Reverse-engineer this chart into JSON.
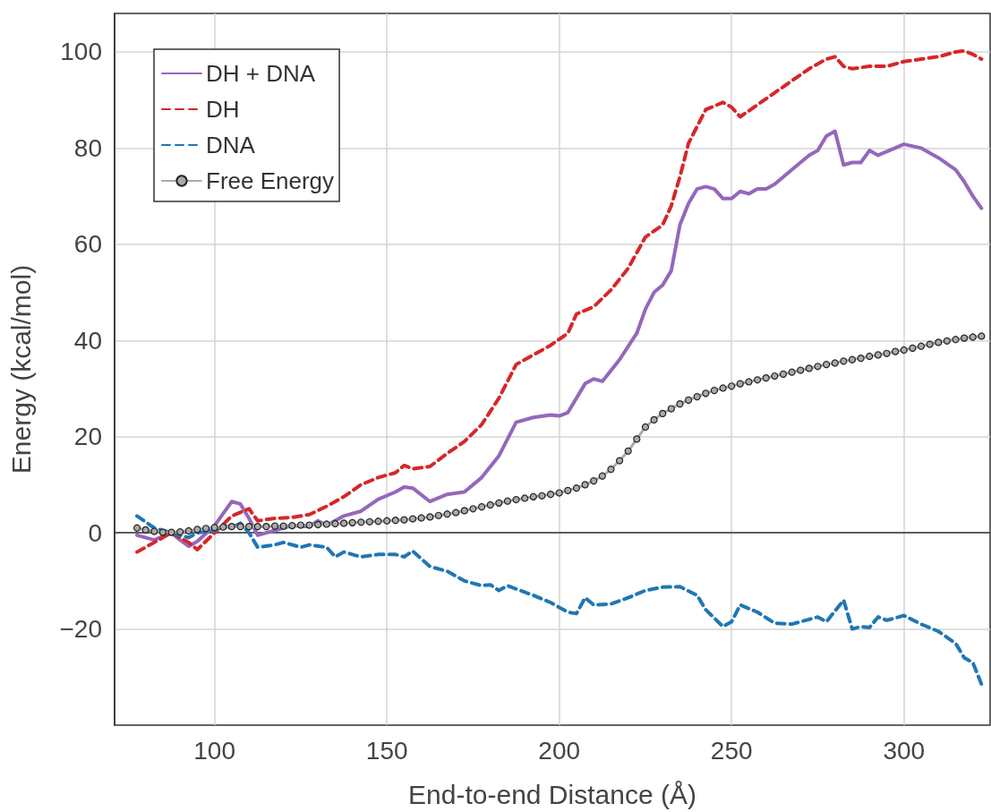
{
  "chart_data": {
    "type": "line",
    "xlabel": "End-to-end Distance (Å)",
    "ylabel": "Energy (kcal/mol)",
    "xlim": [
      71,
      325
    ],
    "xticks": [
      100,
      150,
      200,
      250,
      300
    ],
    "ylim": [
      -40,
      108
    ],
    "yticks": [
      -20,
      0,
      20,
      40,
      60,
      80,
      100
    ],
    "grid": true,
    "legend": "top left",
    "series": [
      {
        "name": "DH + DNA",
        "color": "#9467bd",
        "line_style": "solid",
        "marker": "none",
        "x": [
          77.5,
          82.5,
          87.5,
          90,
          92.5,
          95,
          100,
          102.5,
          105,
          107.5,
          110,
          112.5,
          117.5,
          122.5,
          127.5,
          130,
          132.5,
          137.5,
          142.5,
          147.5,
          152.5,
          155,
          157.5,
          162.5,
          167.5,
          172.5,
          177.5,
          182.5,
          187.5,
          192.5,
          197.5,
          200,
          202.5,
          207.5,
          210,
          212.5,
          217.5,
          222.5,
          225,
          227.5,
          230,
          232.5,
          235,
          237.5,
          240,
          242.5,
          245,
          247.5,
          250,
          252.5,
          255,
          257.5,
          260,
          262.5,
          267.5,
          272.5,
          275,
          277.5,
          280,
          282.5,
          285,
          287.5,
          290,
          292.5,
          300,
          305,
          310,
          315,
          317.5,
          320,
          322.5
        ],
        "values": [
          -0.5,
          -1.5,
          0,
          -1.5,
          -2.8,
          -1.8,
          1.5,
          4,
          6.5,
          6,
          3,
          -0.5,
          0.5,
          1.5,
          1.3,
          2.5,
          1.5,
          3.5,
          4.5,
          7,
          8.5,
          9.5,
          9.3,
          6.5,
          8,
          8.5,
          11.5,
          16,
          23,
          24,
          24.5,
          24.3,
          25,
          31,
          32,
          31.5,
          36,
          41.5,
          46.5,
          50,
          51.5,
          54.5,
          64,
          68.5,
          71.5,
          72,
          71.5,
          69.5,
          69.5,
          71,
          70.5,
          71.5,
          71.5,
          72.5,
          75.5,
          78.5,
          79.5,
          82.5,
          83.5,
          76.5,
          77,
          77,
          79.5,
          78.5,
          80.8,
          80,
          78,
          75.5,
          73,
          70,
          67.5
        ]
      },
      {
        "name": "DH",
        "color": "#d62728",
        "line_style": "dashed",
        "marker": "none",
        "x": [
          77.5,
          82.5,
          87.5,
          92.5,
          95,
          100,
          105,
          110,
          112.5,
          117.5,
          122.5,
          127.5,
          132.5,
          137.5,
          142.5,
          147.5,
          152.5,
          155,
          157.5,
          162.5,
          167.5,
          172.5,
          177.5,
          182.5,
          187.5,
          192.5,
          197.5,
          202.5,
          205,
          210,
          215,
          220,
          225,
          230,
          232.5,
          235,
          237.5,
          242.5,
          247.5,
          250,
          252.5,
          257.5,
          262.5,
          267.5,
          272.5,
          277.5,
          280,
          282.5,
          285,
          290,
          295,
          300,
          305,
          310,
          315,
          317.5,
          320,
          322.5
        ],
        "values": [
          -4,
          -2,
          0,
          -2,
          -3.5,
          0,
          3.5,
          5,
          2.5,
          3,
          3.2,
          3.8,
          5.5,
          7.5,
          10,
          11.5,
          12.5,
          14,
          13.3,
          13.8,
          16.5,
          19,
          22.5,
          28,
          35,
          37,
          39,
          41.5,
          45.5,
          47,
          50.5,
          55,
          61.5,
          64,
          68,
          74,
          81,
          88,
          89.5,
          88.5,
          86.5,
          89,
          91.5,
          94,
          96.5,
          98.5,
          99,
          97,
          96.5,
          97,
          97,
          98,
          98.5,
          99,
          100,
          100.2,
          99.5,
          98.5
        ]
      },
      {
        "name": "DNA",
        "color": "#1f77b4",
        "line_style": "dashed",
        "marker": "none",
        "x": [
          77.5,
          82.5,
          87.5,
          92.5,
          95,
          100,
          102.5,
          105,
          107.5,
          110,
          112.5,
          117.5,
          120,
          125,
          127.5,
          132.5,
          135,
          137.5,
          142.5,
          147.5,
          152.5,
          155,
          157.5,
          162.5,
          167.5,
          172.5,
          177.5,
          180,
          182.5,
          185,
          192.5,
          197.5,
          202.5,
          205,
          207.5,
          210,
          215,
          220,
          225,
          230,
          235,
          240,
          242.5,
          247.5,
          250,
          252.5,
          257.5,
          262.5,
          267.5,
          272.5,
          275,
          277.5,
          282.5,
          285,
          287.5,
          290,
          292.5,
          295,
          300,
          305,
          310,
          315,
          317.5,
          320,
          322.5
        ],
        "values": [
          3.5,
          1,
          0,
          -1,
          0,
          0.5,
          1.5,
          1,
          2,
          0,
          -3,
          -2.5,
          -2,
          -3,
          -2.5,
          -3,
          -5,
          -4,
          -5,
          -4.5,
          -4.5,
          -5,
          -3.8,
          -7,
          -8,
          -10,
          -11,
          -10.8,
          -12,
          -11,
          -13,
          -14.5,
          -16.5,
          -16.8,
          -13.5,
          -15,
          -14.8,
          -13.5,
          -12,
          -11.3,
          -11.2,
          -13,
          -16,
          -19.5,
          -18.5,
          -15,
          -16.5,
          -18.8,
          -19,
          -18,
          -17.5,
          -18.5,
          -14,
          -20,
          -19.5,
          -19.7,
          -17.5,
          -18.2,
          -17.2,
          -19,
          -20.5,
          -23,
          -26,
          -27,
          -31.5
        ]
      },
      {
        "name": "Free Energy",
        "color": "#aaaaaa",
        "line_style": "solid",
        "marker": "circle",
        "x": [
          77.5,
          80,
          82.5,
          85,
          87.5,
          90,
          92.5,
          95,
          97.5,
          100,
          102.5,
          105,
          107.5,
          110,
          112.5,
          115,
          117.5,
          120,
          122.5,
          125,
          127.5,
          130,
          132.5,
          135,
          137.5,
          140,
          142.5,
          145,
          147.5,
          150,
          152.5,
          155,
          157.5,
          160,
          162.5,
          165,
          167.5,
          170,
          172.5,
          175,
          177.5,
          180,
          182.5,
          185,
          187.5,
          190,
          192.5,
          195,
          197.5,
          200,
          202.5,
          205,
          207.5,
          210,
          212.5,
          215,
          217.5,
          220,
          222.5,
          225,
          227.5,
          230,
          232.5,
          235,
          237.5,
          240,
          242.5,
          245,
          247.5,
          250,
          252.5,
          255,
          257.5,
          260,
          262.5,
          265,
          267.5,
          270,
          272.5,
          275,
          277.5,
          280,
          282.5,
          285,
          287.5,
          290,
          292.5,
          295,
          297.5,
          300,
          302.5,
          305,
          307.5,
          310,
          312.5,
          315,
          317.5,
          320,
          322.5
        ],
        "values": [
          1.0,
          0.6,
          0.3,
          0.1,
          0.1,
          0.2,
          0.4,
          0.7,
          0.9,
          1.1,
          1.2,
          1.3,
          1.3,
          1.3,
          1.3,
          1.3,
          1.4,
          1.4,
          1.5,
          1.6,
          1.6,
          1.7,
          1.8,
          1.9,
          2.0,
          2.1,
          2.2,
          2.3,
          2.4,
          2.5,
          2.6,
          2.7,
          2.9,
          3.1,
          3.3,
          3.6,
          3.9,
          4.2,
          4.6,
          5.0,
          5.4,
          5.8,
          6.2,
          6.6,
          6.9,
          7.2,
          7.5,
          7.7,
          8.0,
          8.3,
          8.8,
          9.3,
          10.0,
          10.8,
          11.8,
          13.2,
          15,
          17,
          19.5,
          22,
          23.5,
          24.8,
          25.8,
          26.8,
          27.6,
          28.3,
          29,
          29.6,
          30.1,
          30.5,
          31,
          31.4,
          31.8,
          32.2,
          32.6,
          33,
          33.4,
          33.8,
          34.2,
          34.6,
          35,
          35.3,
          35.7,
          36,
          36.3,
          36.7,
          37,
          37.3,
          37.7,
          38,
          38.4,
          38.8,
          39.2,
          39.6,
          39.9,
          40.2,
          40.5,
          40.7,
          40.9
        ]
      }
    ]
  }
}
